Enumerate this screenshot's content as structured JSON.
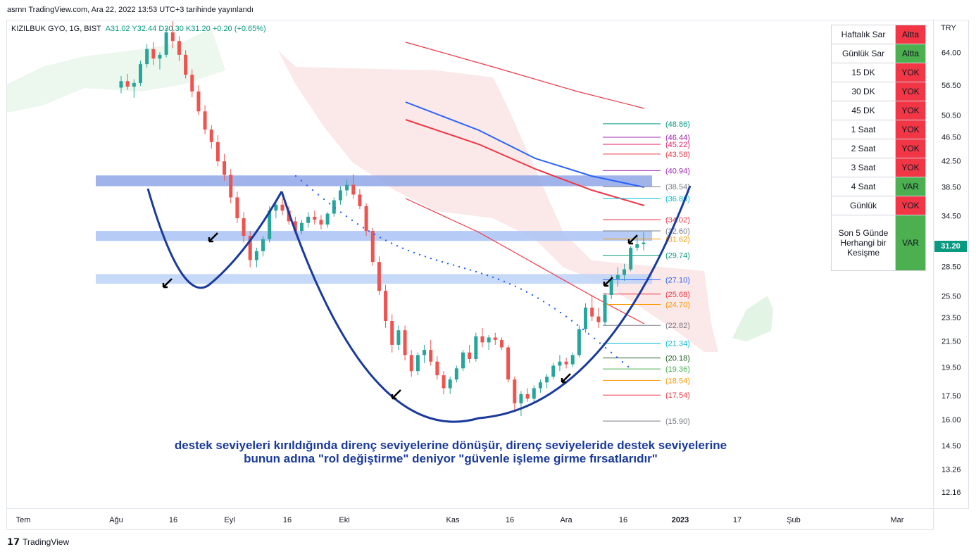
{
  "header": {
    "publish_line": "asrnn TradingView.com, Ara 22, 2022 13:53 UTC+3 tarihinde yayınlandı"
  },
  "legend": {
    "symbol": "KIZILBUK GYO, 1G, BIST",
    "open": "A31.02",
    "high": "Y32.44",
    "low": "D30.30",
    "close": "K31.20",
    "change": "+0.20 (+0.65%)"
  },
  "currency": "TRY",
  "last_price": "31.20",
  "status_table": [
    {
      "label": "Haftalık Sar",
      "value": "Altta",
      "color": "#f23645"
    },
    {
      "label": "Günlük Sar",
      "value": "Altta",
      "color": "#4caf50"
    },
    {
      "label": "15 DK",
      "value": "YOK",
      "color": "#f23645"
    },
    {
      "label": "30 DK",
      "value": "YOK",
      "color": "#f23645"
    },
    {
      "label": "45 DK",
      "value": "YOK",
      "color": "#f23645"
    },
    {
      "label": "1 Saat",
      "value": "YOK",
      "color": "#f23645"
    },
    {
      "label": "2 Saat",
      "value": "YOK",
      "color": "#f23645"
    },
    {
      "label": "3 Saat",
      "value": "YOK",
      "color": "#f23645"
    },
    {
      "label": "4 Saat",
      "value": "VAR",
      "color": "#4caf50"
    },
    {
      "label": "Günlük",
      "value": "YOK",
      "color": "#f23645"
    },
    {
      "label": "Son 5 Günde Herhangi bir Kesişme",
      "value": "VAR",
      "color": "#4caf50"
    }
  ],
  "caption": {
    "line1": "destek seviyeleri kırıldığında direnç seviyelerine dönüşür, direnç seviyeleride destek seviyelerine",
    "line2": "bunun adına \"rol değiştirme\" deniyor \"güvenle işleme girme fırsatlarıdır\""
  },
  "footer": {
    "brand": "TradingView"
  },
  "chart_data": {
    "type": "candlestick",
    "y_scale": "log",
    "ylim": [
      11.5,
      72
    ],
    "y_ticks": [
      "64.00",
      "56.50",
      "50.50",
      "46.50",
      "42.50",
      "38.50",
      "34.50",
      "28.50",
      "25.50",
      "23.50",
      "21.50",
      "19.50",
      "17.50",
      "16.00",
      "14.50",
      "13.26",
      "12.16"
    ],
    "y_tick_values": [
      64.0,
      56.5,
      50.5,
      46.5,
      42.5,
      38.5,
      34.5,
      28.5,
      25.5,
      23.5,
      21.5,
      19.5,
      17.5,
      16.0,
      14.5,
      13.26,
      12.16
    ],
    "x_ticks": [
      "Tem",
      "Ağu",
      "16",
      "Eyl",
      "16",
      "Eki",
      "Kas",
      "16",
      "Ara",
      "16",
      "2023",
      "17",
      "Şub",
      "Mar"
    ],
    "fib_levels": [
      {
        "label": "(48.86)",
        "value": 48.86,
        "color": "#089981"
      },
      {
        "label": "(46.44)",
        "value": 46.44,
        "color": "#9c27b0"
      },
      {
        "label": "(45.22)",
        "value": 45.22,
        "color": "#e91e63"
      },
      {
        "label": "(43.58)",
        "value": 43.58,
        "color": "#f23645"
      },
      {
        "label": "(40.94)",
        "value": 40.94,
        "color": "#9c27b0"
      },
      {
        "label": "(38.54)",
        "value": 38.54,
        "color": "#787b86"
      },
      {
        "label": "(36.86)",
        "value": 36.86,
        "color": "#00bcd4"
      },
      {
        "label": "(34.02)",
        "value": 34.02,
        "color": "#f23645"
      },
      {
        "label": "(32.60)",
        "value": 32.6,
        "color": "#787b86"
      },
      {
        "label": "(31.62)",
        "value": 31.62,
        "color": "#ff9800"
      },
      {
        "label": "(29.74)",
        "value": 29.74,
        "color": "#089981"
      },
      {
        "label": "(27.10)",
        "value": 27.1,
        "color": "#2962ff"
      },
      {
        "label": "(25.68)",
        "value": 25.68,
        "color": "#f23645"
      },
      {
        "label": "(24.70)",
        "value": 24.7,
        "color": "#ff9800"
      },
      {
        "label": "(22.82)",
        "value": 22.82,
        "color": "#787b86"
      },
      {
        "label": "(21.34)",
        "value": 21.34,
        "color": "#00bcd4"
      },
      {
        "label": "(20.18)",
        "value": 20.18,
        "color": "#1b5e20"
      },
      {
        "label": "(19.36)",
        "value": 19.36,
        "color": "#4caf50"
      },
      {
        "label": "(18.54)",
        "value": 18.54,
        "color": "#ff9800"
      },
      {
        "label": "(17.54)",
        "value": 17.54,
        "color": "#f23645"
      },
      {
        "label": "(15.90)",
        "value": 15.9,
        "color": "#787b86"
      }
    ],
    "zones": [
      {
        "low": 38.6,
        "high": 40.2,
        "color": "#8fa7e8"
      },
      {
        "low": 31.4,
        "high": 32.6,
        "color": "#a9c3f5"
      },
      {
        "low": 26.7,
        "high": 27.7,
        "color": "#bcd2f7"
      }
    ],
    "candles": [
      [
        56.0,
        58.5,
        54.8,
        57.4
      ],
      [
        57.4,
        59.0,
        55.5,
        56.2
      ],
      [
        56.2,
        57.8,
        53.9,
        57.0
      ],
      [
        57.0,
        62.0,
        56.4,
        61.2
      ],
      [
        61.2,
        66.0,
        60.4,
        64.8
      ],
      [
        64.8,
        66.5,
        61.0,
        62.5
      ],
      [
        62.5,
        64.0,
        60.0,
        63.4
      ],
      [
        63.4,
        70.0,
        62.8,
        69.0
      ],
      [
        69.0,
        72.0,
        65.0,
        66.8
      ],
      [
        66.8,
        68.0,
        62.0,
        63.4
      ],
      [
        63.4,
        64.5,
        58.0,
        58.8
      ],
      [
        58.8,
        60.0,
        54.0,
        55.2
      ],
      [
        55.2,
        56.5,
        50.5,
        51.2
      ],
      [
        51.2,
        52.4,
        47.0,
        47.8
      ],
      [
        47.8,
        48.6,
        44.5,
        45.6
      ],
      [
        45.6,
        46.8,
        41.6,
        42.4
      ],
      [
        42.4,
        43.6,
        39.4,
        40.3
      ],
      [
        40.3,
        41.2,
        36.2,
        37.0
      ],
      [
        37.0,
        37.8,
        33.6,
        34.2
      ],
      [
        34.2,
        35.0,
        31.2,
        32.0
      ],
      [
        32.0,
        32.6,
        28.4,
        29.2
      ],
      [
        29.2,
        30.6,
        28.4,
        30.2
      ],
      [
        30.2,
        32.0,
        29.6,
        31.6
      ],
      [
        31.6,
        35.8,
        31.2,
        35.2
      ],
      [
        35.2,
        36.6,
        34.2,
        36.0
      ],
      [
        36.0,
        36.8,
        34.6,
        35.2
      ],
      [
        35.2,
        35.8,
        33.4,
        33.8
      ],
      [
        33.8,
        34.4,
        32.2,
        32.6
      ],
      [
        32.6,
        34.0,
        32.2,
        33.6
      ],
      [
        33.6,
        35.0,
        33.0,
        34.4
      ],
      [
        34.4,
        35.2,
        33.4,
        34.0
      ],
      [
        34.0,
        34.6,
        32.8,
        33.4
      ],
      [
        33.4,
        35.0,
        33.0,
        34.8
      ],
      [
        34.8,
        37.0,
        34.4,
        36.6
      ],
      [
        36.6,
        38.6,
        36.0,
        38.0
      ],
      [
        38.0,
        39.6,
        37.2,
        38.8
      ],
      [
        38.8,
        40.4,
        36.8,
        37.4
      ],
      [
        37.4,
        38.2,
        35.4,
        35.8
      ],
      [
        35.8,
        36.2,
        32.0,
        32.6
      ],
      [
        32.6,
        33.0,
        28.6,
        29.0
      ],
      [
        29.0,
        29.6,
        25.6,
        26.0
      ],
      [
        26.0,
        26.6,
        22.6,
        23.2
      ],
      [
        23.2,
        23.8,
        20.6,
        21.2
      ],
      [
        21.2,
        22.8,
        20.8,
        22.4
      ],
      [
        22.4,
        22.8,
        20.0,
        20.4
      ],
      [
        20.4,
        20.8,
        18.8,
        19.2
      ],
      [
        19.2,
        20.6,
        18.9,
        20.4
      ],
      [
        20.4,
        21.2,
        19.8,
        20.8
      ],
      [
        20.8,
        21.6,
        19.6,
        19.9
      ],
      [
        19.9,
        20.3,
        18.6,
        18.9
      ],
      [
        18.9,
        19.2,
        17.6,
        18.0
      ],
      [
        18.0,
        18.8,
        17.6,
        18.6
      ],
      [
        18.6,
        19.6,
        18.4,
        19.4
      ],
      [
        19.4,
        20.8,
        19.2,
        20.6
      ],
      [
        20.6,
        21.2,
        19.8,
        20.1
      ],
      [
        20.1,
        22.2,
        19.9,
        21.9
      ],
      [
        21.9,
        22.6,
        21.0,
        21.4
      ],
      [
        21.4,
        22.0,
        20.8,
        21.8
      ],
      [
        21.8,
        22.2,
        21.2,
        21.6
      ],
      [
        21.6,
        21.8,
        20.8,
        21.0
      ],
      [
        21.0,
        21.2,
        18.4,
        18.6
      ],
      [
        18.6,
        18.8,
        16.6,
        17.0
      ],
      [
        17.0,
        17.8,
        16.2,
        17.6
      ],
      [
        17.6,
        18.0,
        17.1,
        17.3
      ],
      [
        17.3,
        18.2,
        17.1,
        18.0
      ],
      [
        18.0,
        18.6,
        17.7,
        18.4
      ],
      [
        18.4,
        19.0,
        18.0,
        18.8
      ],
      [
        18.8,
        19.8,
        18.6,
        19.6
      ],
      [
        19.6,
        20.4,
        19.2,
        19.9
      ],
      [
        19.9,
        20.2,
        19.4,
        19.7
      ],
      [
        19.7,
        20.6,
        19.5,
        20.4
      ],
      [
        20.4,
        22.8,
        20.2,
        22.5
      ],
      [
        22.5,
        24.8,
        22.2,
        24.4
      ],
      [
        24.4,
        25.6,
        23.2,
        23.6
      ],
      [
        23.6,
        24.4,
        22.6,
        23.1
      ],
      [
        23.1,
        25.8,
        22.8,
        25.6
      ],
      [
        25.6,
        27.6,
        25.2,
        27.2
      ],
      [
        27.2,
        28.4,
        26.4,
        27.6
      ],
      [
        27.6,
        28.8,
        27.0,
        28.2
      ],
      [
        28.2,
        30.8,
        28.0,
        30.6
      ],
      [
        30.6,
        32.0,
        30.2,
        31.0
      ],
      [
        31.02,
        32.44,
        30.3,
        31.2
      ]
    ],
    "curves": [
      {
        "name": "",
        "color": "#2962ff",
        "points": [
          [
            0.53,
            41.8
          ],
          [
            0.62,
            38.6
          ]
        ]
      }
    ]
  }
}
